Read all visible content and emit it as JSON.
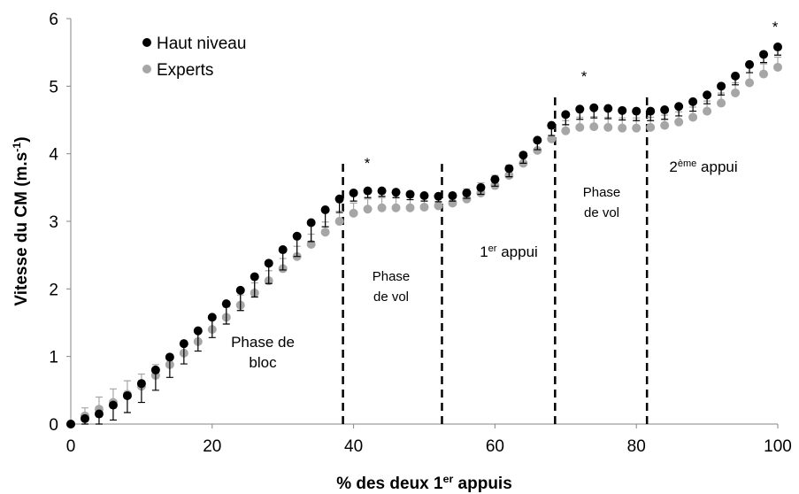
{
  "chart_data": {
    "type": "scatter",
    "x_label": [
      "% des deux 1",
      "er",
      " appuis"
    ],
    "y_label": [
      "Vitesse du CM (m.s",
      "-1",
      ")"
    ],
    "x": [
      0,
      2,
      4,
      6,
      8,
      10,
      12,
      14,
      16,
      18,
      20,
      22,
      24,
      26,
      28,
      30,
      32,
      34,
      36,
      38,
      40,
      42,
      44,
      46,
      48,
      50,
      52,
      54,
      56,
      58,
      60,
      62,
      64,
      66,
      68,
      70,
      72,
      74,
      76,
      78,
      80,
      82,
      84,
      86,
      88,
      90,
      92,
      94,
      96,
      98,
      100
    ],
    "series": [
      {
        "name": "Haut niveau",
        "color": "#000000",
        "error_color": "#000000",
        "values": [
          0,
          0.08,
          0.15,
          0.28,
          0.42,
          0.6,
          0.8,
          0.99,
          1.19,
          1.38,
          1.58,
          1.78,
          1.98,
          2.18,
          2.38,
          2.58,
          2.78,
          2.98,
          3.17,
          3.33,
          3.42,
          3.45,
          3.45,
          3.43,
          3.4,
          3.38,
          3.37,
          3.38,
          3.42,
          3.5,
          3.62,
          3.78,
          3.98,
          4.2,
          4.42,
          4.58,
          4.66,
          4.68,
          4.67,
          4.64,
          4.63,
          4.63,
          4.65,
          4.7,
          4.77,
          4.87,
          5.0,
          5.15,
          5.32,
          5.47,
          5.58
        ],
        "errors": [
          0.03,
          0.08,
          0.15,
          0.22,
          0.25,
          0.28,
          0.3,
          0.3,
          0.3,
          0.3,
          0.3,
          0.3,
          0.3,
          0.3,
          0.3,
          0.3,
          0.3,
          0.28,
          0.25,
          0.2,
          0.12,
          0.1,
          0.08,
          0.08,
          0.08,
          0.08,
          0.08,
          0.08,
          0.08,
          0.1,
          0.1,
          0.12,
          0.12,
          0.14,
          0.15,
          0.15,
          0.15,
          0.15,
          0.15,
          0.14,
          0.14,
          0.14,
          0.14,
          0.14,
          0.14,
          0.13,
          0.13,
          0.13,
          0.12,
          0.12,
          0.12
        ]
      },
      {
        "name": "Experts",
        "color": "#a6a6a6",
        "error_color": "#a6a6a6",
        "values": [
          0,
          0.12,
          0.22,
          0.32,
          0.44,
          0.56,
          0.72,
          0.88,
          1.05,
          1.22,
          1.4,
          1.58,
          1.76,
          1.94,
          2.12,
          2.3,
          2.48,
          2.66,
          2.84,
          3.0,
          3.12,
          3.18,
          3.2,
          3.2,
          3.2,
          3.21,
          3.23,
          3.27,
          3.33,
          3.42,
          3.53,
          3.68,
          3.86,
          4.05,
          4.22,
          4.34,
          4.39,
          4.4,
          4.39,
          4.38,
          4.38,
          4.39,
          4.42,
          4.47,
          4.54,
          4.63,
          4.75,
          4.9,
          5.05,
          5.18,
          5.28
        ],
        "errors": [
          0.03,
          0.12,
          0.18,
          0.2,
          0.2,
          0.18,
          0.16,
          0.15,
          0.15,
          0.15,
          0.15,
          0.15,
          0.15,
          0.15,
          0.15,
          0.15,
          0.15,
          0.15,
          0.15,
          0.15,
          0.15,
          0.15,
          0.15,
          0.15,
          0.15,
          0.15,
          0.15,
          0.15,
          0.15,
          0.15,
          0.15,
          0.15,
          0.15,
          0.15,
          0.15,
          0.15,
          0.15,
          0.15,
          0.15,
          0.15,
          0.15,
          0.15,
          0.15,
          0.15,
          0.15,
          0.15,
          0.15,
          0.15,
          0.15,
          0.15,
          0.15
        ]
      }
    ],
    "xlim": [
      0,
      100
    ],
    "xticks": [
      0,
      20,
      40,
      60,
      80,
      100
    ],
    "ylim": [
      0,
      6
    ],
    "yticks": [
      0,
      1,
      2,
      3,
      4,
      5,
      6
    ],
    "vlines": [
      {
        "x": 38.5,
        "top": 3.92
      },
      {
        "x": 52.5,
        "top": 3.85
      },
      {
        "x": 68.5,
        "top": 4.85
      },
      {
        "x": 81.5,
        "top": 4.85
      }
    ],
    "annotations": [
      {
        "lines": [
          [
            "Phase de"
          ],
          [
            "bloc"
          ]
        ]
      },
      {
        "lines": [
          [
            "Phase"
          ],
          [
            "de vol"
          ]
        ]
      },
      {
        "lines": [
          [
            "1",
            "er",
            " appui"
          ]
        ]
      },
      {
        "lines": [
          [
            "Phase"
          ],
          [
            "de vol"
          ]
        ]
      },
      {
        "lines": [
          [
            "2",
            "ème",
            " appui"
          ]
        ]
      },
      {
        "lines": [
          [
            "*"
          ]
        ]
      },
      {
        "lines": [
          [
            "*"
          ]
        ]
      },
      {
        "lines": [
          [
            "*"
          ]
        ]
      }
    ],
    "legend": "upper left"
  }
}
